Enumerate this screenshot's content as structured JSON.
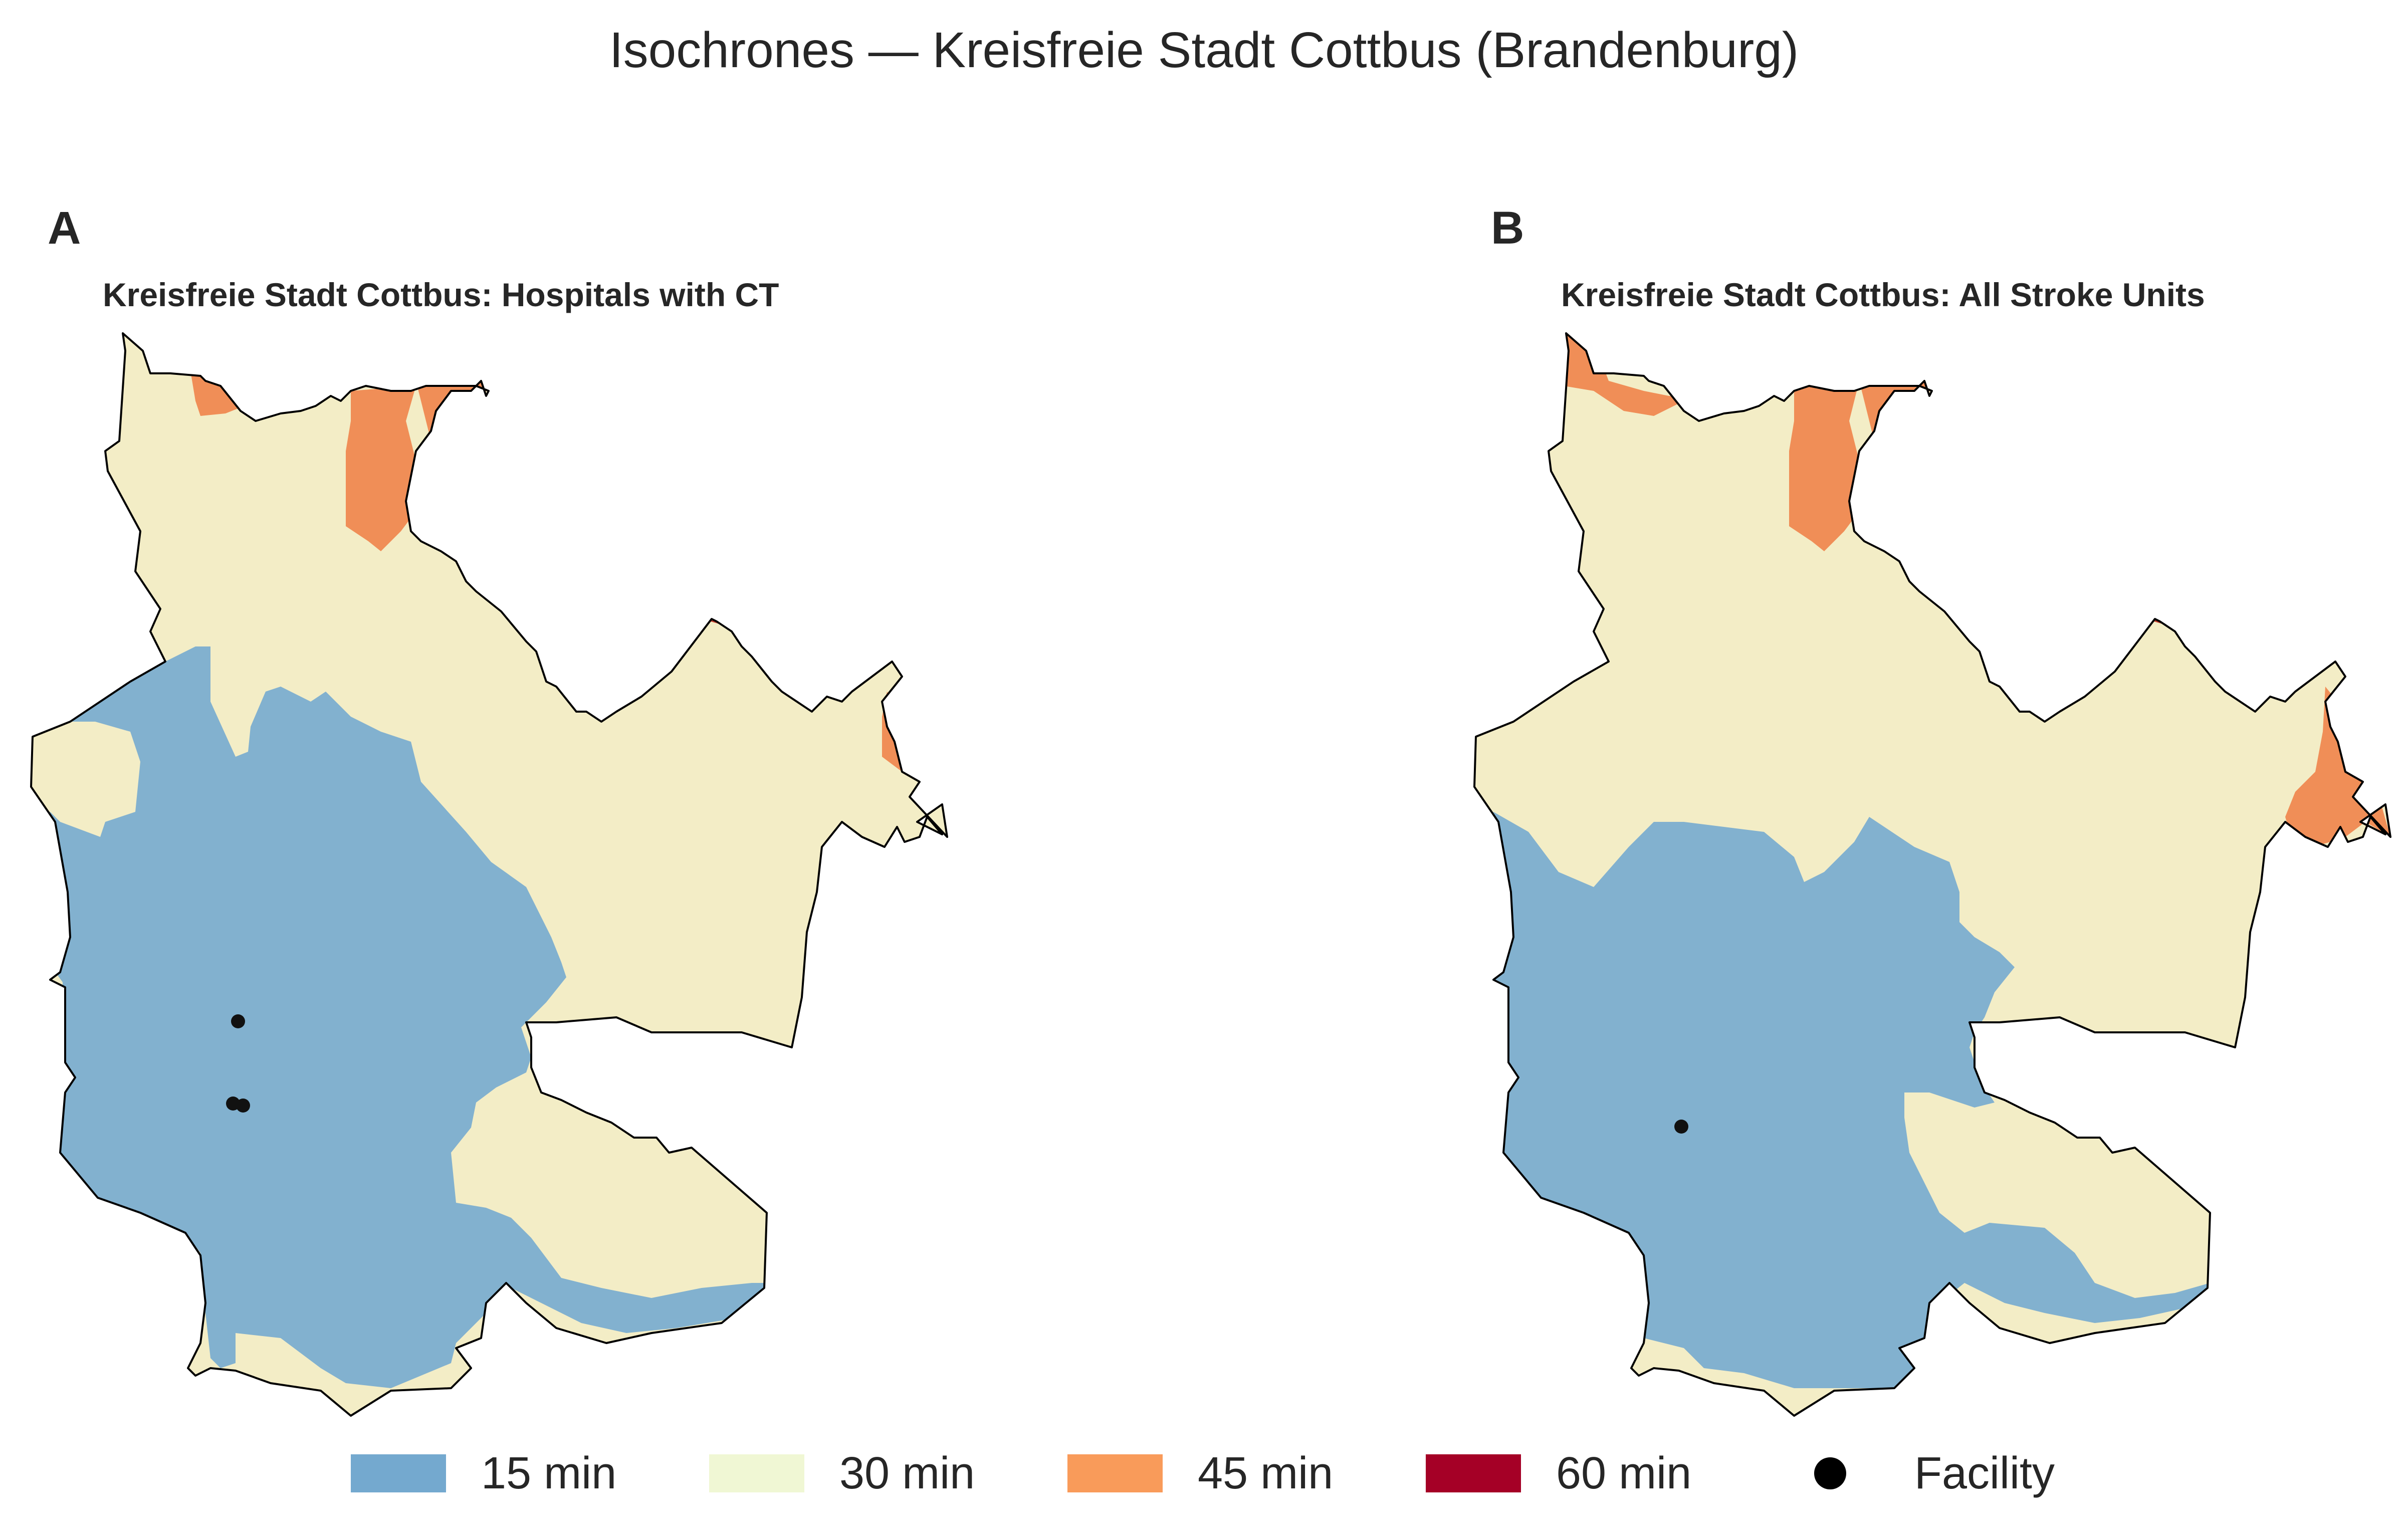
{
  "figure": {
    "title": "Isochrones — Kreisfreie Stadt Cottbus (Brandenburg)"
  },
  "panels": [
    {
      "letter": "A",
      "subtitle": "Kreisfreie Stadt Cottbus: Hospitals with CT",
      "facility_count_shown": 3
    },
    {
      "letter": "B",
      "subtitle": "Kreisfreie Stadt Cottbus: All Stroke Units",
      "facility_count_shown": 1
    }
  ],
  "legend": {
    "items": [
      {
        "label": "15 min",
        "color": "#74a9cf"
      },
      {
        "label": "30 min",
        "color": "#f0f7d4"
      },
      {
        "label": "45 min",
        "color": "#f99b5a"
      },
      {
        "label": "60 min",
        "color": "#a50026"
      }
    ],
    "facility_label": "Facility"
  },
  "map_colors": {
    "min15": "#82b1cf",
    "min30": "#f3edc6",
    "min45": "#f08e57",
    "min60": "#c0392b",
    "boundary": "#000000",
    "facility": "#111111"
  }
}
